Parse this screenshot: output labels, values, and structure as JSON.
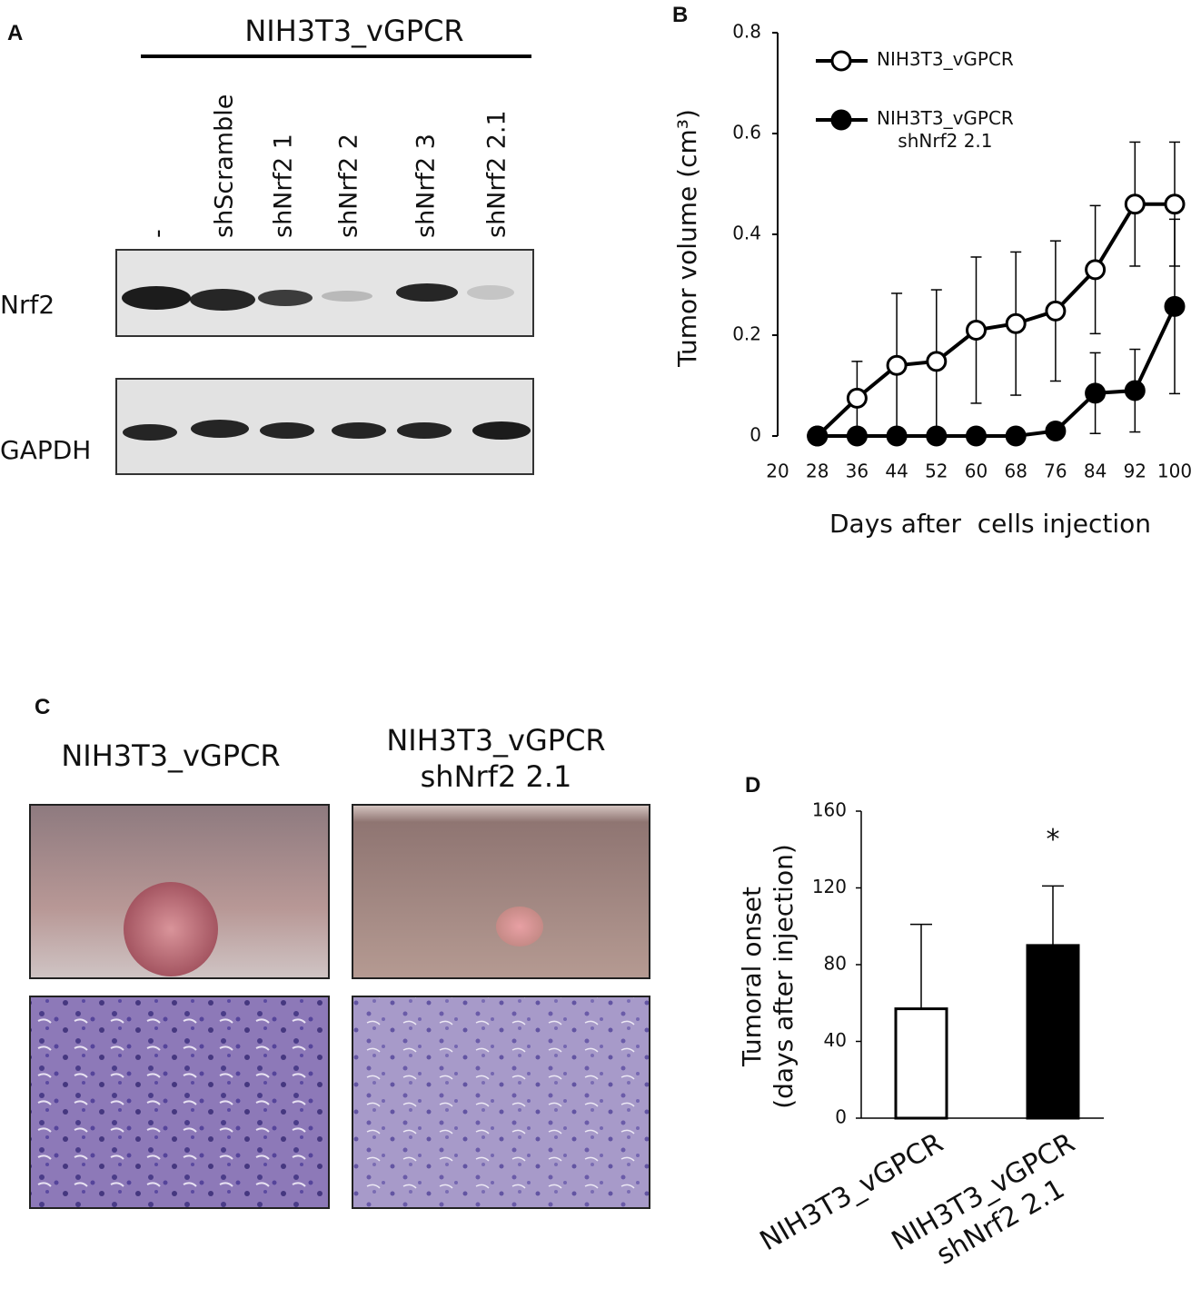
{
  "panel_a": {
    "label": "A",
    "header": "NIH3T3_vGPCR",
    "lanes": [
      "-",
      "shScramble",
      "shNrf2 1",
      "shNrf2 2",
      "shNrf2 3",
      "shNrf2 2.1"
    ],
    "rows": [
      "Nrf2",
      "GAPDH"
    ]
  },
  "panel_c": {
    "label": "C",
    "columns": [
      "NIH3T3_vGPCR",
      "NIH3T3_vGPCR\nshNrf2 2.1"
    ]
  },
  "chart_data": [
    {
      "type": "line",
      "panel_label": "B",
      "x": [
        28,
        36,
        44,
        52,
        60,
        68,
        76,
        84,
        92,
        100
      ],
      "xlim": [
        20,
        100
      ],
      "xticks": [
        20,
        28,
        36,
        44,
        52,
        60,
        68,
        76,
        84,
        92,
        100
      ],
      "ylim": [
        0,
        0.8
      ],
      "yticks": [
        0,
        0.2,
        0.4,
        0.6,
        0.8
      ],
      "x_label": "Days after  cells injection",
      "y_label": "Tumor volume (cm³)",
      "series": [
        {
          "name": "NIH3T3_vGPCR",
          "color": "#000000",
          "marker": "open",
          "values": [
            0,
            0.075,
            0.14,
            0.148,
            0.21,
            0.223,
            0.248,
            0.33,
            0.46,
            0.46
          ],
          "errors": [
            0,
            0.073,
            0.143,
            0.142,
            0.145,
            0.142,
            0.139,
            0.127,
            0.123,
            0.123
          ]
        },
        {
          "name": "NIH3T3_vGPCR\nshNrf2 2.1",
          "color": "#000000",
          "marker": "filled",
          "values": [
            0,
            0,
            0,
            0,
            0,
            0,
            0.01,
            0.085,
            0.09,
            0.257
          ],
          "errors": [
            0,
            0,
            0,
            0,
            0,
            0,
            0,
            0.08,
            0.082,
            0.173
          ]
        }
      ]
    },
    {
      "type": "bar",
      "panel_label": "D",
      "categories": [
        "NIH3T3_vGPCR",
        "NIH3T3_vGPCR\nshNrf2 2.1"
      ],
      "values": [
        57,
        90
      ],
      "errors": [
        44,
        31
      ],
      "colors": [
        "#ffffff",
        "#000000"
      ],
      "significance": [
        null,
        "*"
      ],
      "ylim": [
        0,
        160
      ],
      "yticks": [
        0,
        40,
        80,
        120,
        160
      ],
      "y_label": "Tumoral onset\n(days after injection)"
    }
  ]
}
